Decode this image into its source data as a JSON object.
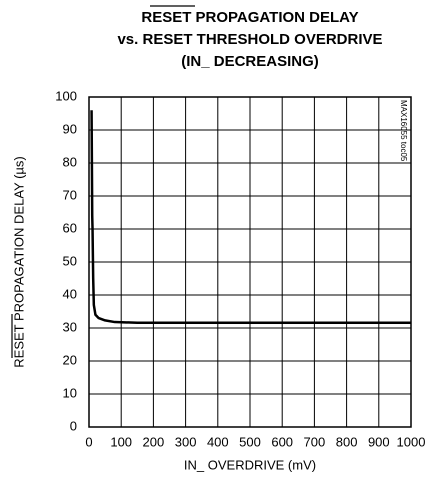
{
  "chart_data": {
    "type": "line",
    "title_lines": [
      "RESET PROPAGATION DELAY",
      "vs. RESET THRESHOLD OVERDRIVE",
      "(IN_ DECREASING)"
    ],
    "x_label": "IN_ OVERDRIVE (mV)",
    "y_label": "RESET PROPAGATION DELAY (µs)",
    "annotation": "MAX16055 toc05",
    "x": [
      8,
      9,
      10,
      11,
      13,
      15,
      20,
      30,
      50,
      80,
      150,
      1000
    ],
    "series": [
      {
        "color": "#000000",
        "values": [
          96,
          80,
          64,
          60,
          45,
          37,
          34,
          33,
          32.3,
          31.8,
          31.6,
          31.6
        ]
      }
    ],
    "xlim": [
      0,
      1000
    ],
    "xticks": [
      0,
      100,
      200,
      300,
      400,
      500,
      600,
      700,
      800,
      900,
      1000
    ],
    "ylim": [
      0,
      100
    ],
    "yticks": [
      0,
      10,
      20,
      30,
      40,
      50,
      60,
      70,
      80,
      90,
      100
    ],
    "grid": true
  }
}
